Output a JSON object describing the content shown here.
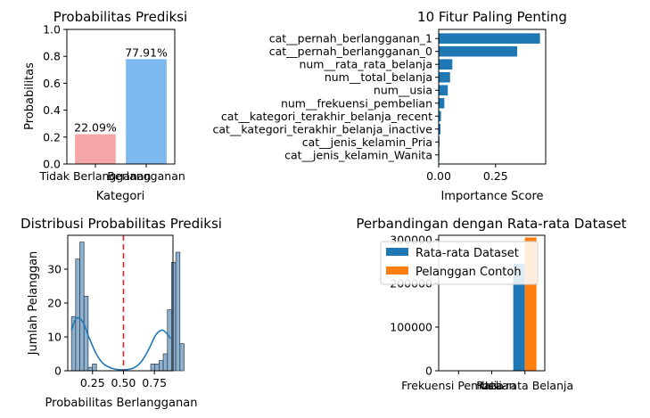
{
  "chart_data": [
    {
      "type": "bar",
      "title": "Probabilitas Prediksi",
      "xlabel": "Kategori",
      "ylabel": "Probabilitas",
      "categories": [
        "Tidak Berlangganan",
        "Berlangganan"
      ],
      "values": [
        0.2209,
        0.7791
      ],
      "value_labels": [
        "22.09%",
        "77.91%"
      ],
      "colors": [
        "#f4a6a6",
        "#7db8ee"
      ],
      "ylim": [
        0,
        1.0
      ],
      "yticks": [
        "0.0",
        "0.2",
        "0.4",
        "0.6",
        "0.8",
        "1.0"
      ]
    },
    {
      "type": "bar",
      "orientation": "horizontal",
      "title": "10 Fitur Paling Penting",
      "xlabel": "Importance Score",
      "ylabel": "",
      "categories": [
        "cat__pernah_berlangganan_1",
        "cat__pernah_berlangganan_0",
        "num__rata_rata_belanja",
        "num__total_belanja",
        "num__usia",
        "num__frekuensi_pembelian",
        "cat__kategori_terakhir_belanja_recent",
        "cat__kategori_terakhir_belanja_inactive",
        "cat__jenis_kelamin_Pria",
        "cat__jenis_kelamin_Wanita"
      ],
      "values": [
        0.445,
        0.345,
        0.06,
        0.05,
        0.04,
        0.025,
        0.01,
        0.008,
        0.004,
        0.003
      ],
      "color": "#1f77b4",
      "xlim": [
        0,
        0.47
      ],
      "xticks": [
        0,
        0.25
      ],
      "xtick_labels": [
        "0.00",
        "0.25"
      ]
    },
    {
      "type": "bar",
      "subtype": "histogram",
      "title": "Distribusi Probabilitas Prediksi",
      "xlabel": "Probabilitas Berlangganan",
      "ylabel": "Jumlah Pelanggan",
      "bin_start": 0.08,
      "bin_width": 0.0337,
      "counts": [
        16,
        33,
        38,
        22,
        1,
        2,
        0,
        0,
        0,
        0,
        0,
        0,
        0,
        0,
        0,
        0,
        0,
        0,
        0,
        2,
        2,
        3,
        5,
        18,
        32,
        35,
        8
      ],
      "kde": [
        [
          0.08,
          12
        ],
        [
          0.12,
          15.5
        ],
        [
          0.17,
          14.5
        ],
        [
          0.22,
          10
        ],
        [
          0.28,
          5
        ],
        [
          0.34,
          2
        ],
        [
          0.42,
          0.6
        ],
        [
          0.5,
          0.3
        ],
        [
          0.58,
          0.8
        ],
        [
          0.64,
          2.5
        ],
        [
          0.7,
          6
        ],
        [
          0.76,
          10.5
        ],
        [
          0.81,
          12
        ],
        [
          0.85,
          11
        ],
        [
          0.88,
          9.5
        ]
      ],
      "threshold": 0.5,
      "xlim": [
        0.05,
        0.9
      ],
      "ylim": [
        0,
        40
      ],
      "xticks": [
        0.25,
        0.5,
        0.75
      ],
      "xtick_labels": [
        "0.25",
        "0.50",
        "0.75"
      ],
      "yticks": [
        0,
        10,
        20,
        30
      ]
    },
    {
      "type": "bar",
      "title": "Perbandingan dengan Rata-rata Dataset",
      "xlabel": "",
      "ylabel": "",
      "categories": [
        "Frekuensi Pembelian",
        "Usia",
        "Rata-rata Belanja"
      ],
      "series": [
        {
          "name": "Rata-rata Dataset",
          "values": [
            10,
            40,
            245000
          ],
          "color": "#1f77b4"
        },
        {
          "name": "Pelanggan Contoh",
          "values": [
            12,
            35,
            305000
          ],
          "color": "#ff7f0e"
        }
      ],
      "ylim": [
        0,
        310000
      ],
      "yticks": [
        0,
        100000,
        200000,
        300000
      ],
      "legend": "top"
    }
  ]
}
